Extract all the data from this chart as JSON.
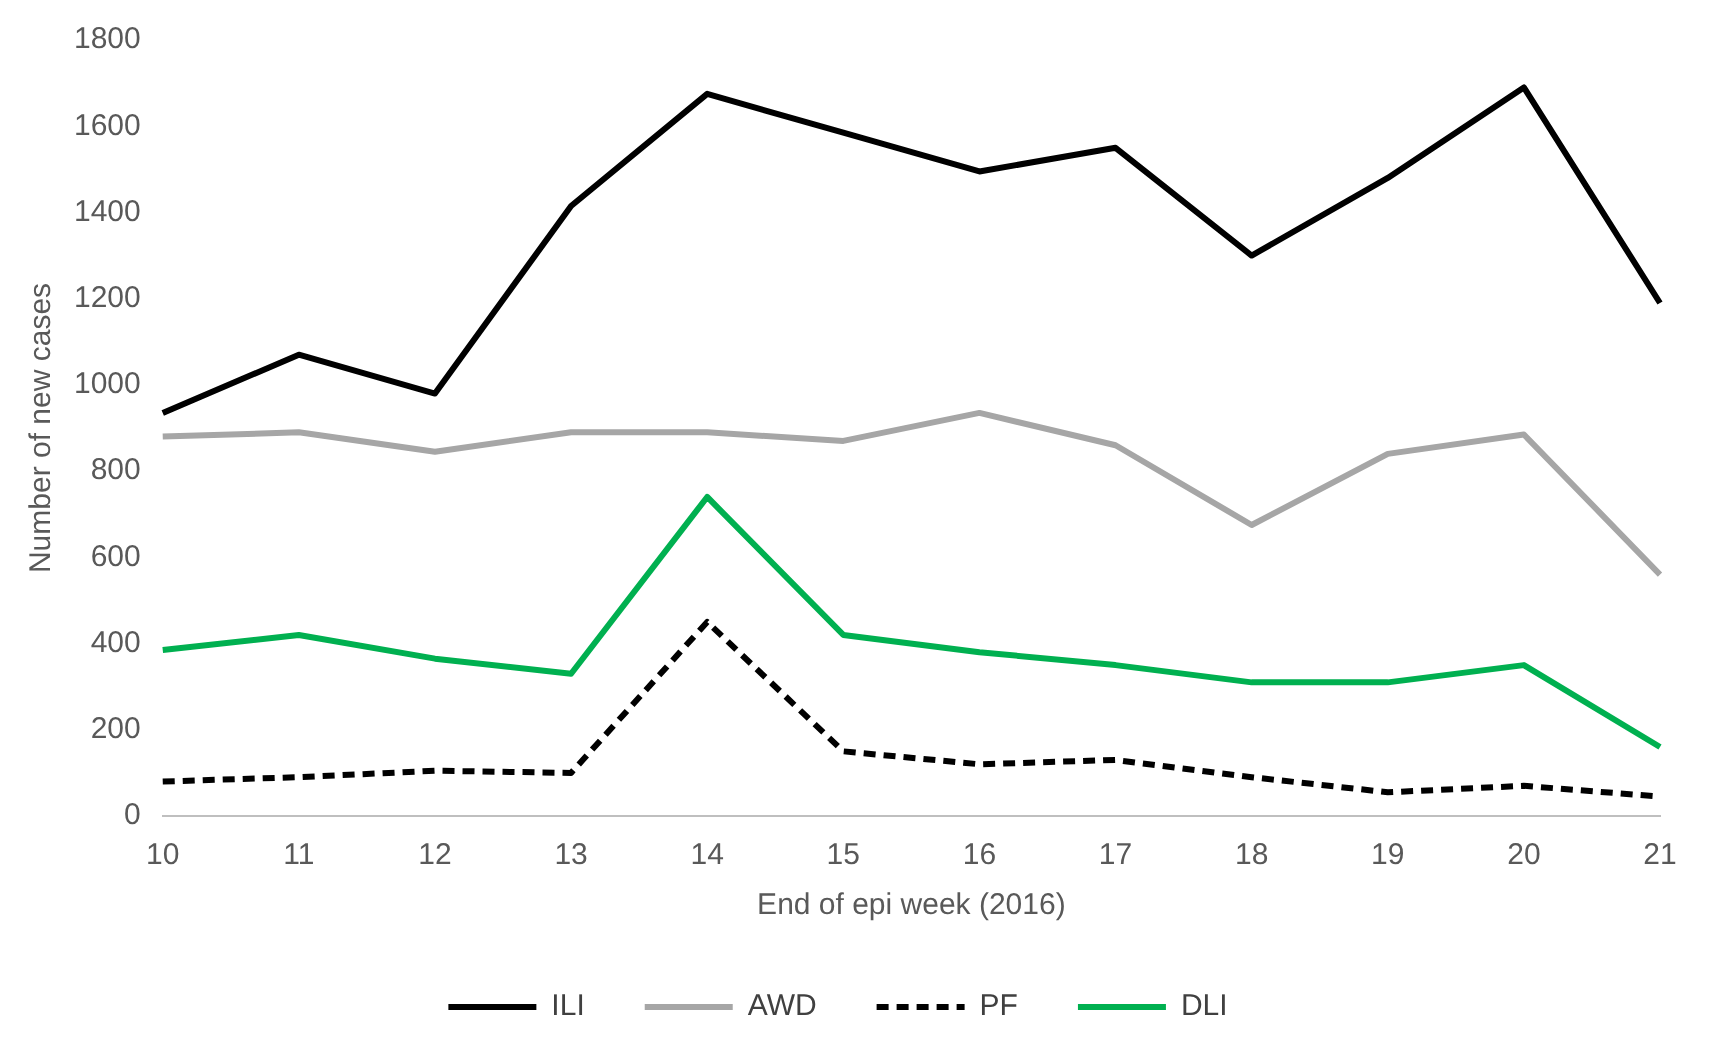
{
  "chart_data": {
    "type": "line",
    "xlabel": "End of epi week (2016)",
    "ylabel": "Number of new cases",
    "categories": [
      "10",
      "11",
      "12",
      "13",
      "14",
      "15",
      "16",
      "17",
      "18",
      "19",
      "20",
      "21"
    ],
    "ylim": [
      0,
      1800
    ],
    "yticks": [
      0,
      200,
      400,
      600,
      800,
      1000,
      1200,
      1400,
      1600,
      1800
    ],
    "grid": false,
    "legend": "bottom",
    "marker": "none",
    "series": [
      {
        "name": "ILI",
        "color": "#000000",
        "line_style": "solid",
        "values": [
          935,
          1070,
          980,
          1415,
          1675,
          1585,
          1495,
          1550,
          1300,
          1480,
          1690,
          1190
        ]
      },
      {
        "name": "AWD",
        "color": "#a6a6a6",
        "line_style": "solid",
        "values": [
          880,
          890,
          845,
          890,
          890,
          870,
          935,
          860,
          675,
          840,
          885,
          560
        ]
      },
      {
        "name": "PF",
        "color": "#000000",
        "line_style": "dashed",
        "values": [
          80,
          90,
          105,
          100,
          450,
          150,
          120,
          130,
          90,
          55,
          70,
          45
        ]
      },
      {
        "name": "DLI",
        "color": "#00b050",
        "line_style": "solid",
        "values": [
          385,
          420,
          365,
          330,
          740,
          420,
          380,
          350,
          310,
          310,
          350,
          160
        ]
      }
    ]
  }
}
